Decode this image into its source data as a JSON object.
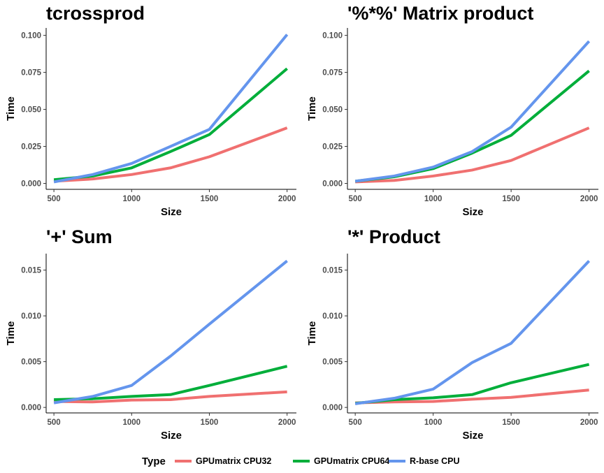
{
  "chart_data": [
    {
      "type": "line",
      "title": "tcrossprod",
      "xlabel": "Size",
      "ylabel": "Time",
      "xlim": [
        450,
        2060
      ],
      "ylim": [
        -0.004,
        0.105
      ],
      "xticks": [
        500,
        1000,
        1500,
        2000
      ],
      "xtick_labels": [
        "500",
        "1000",
        "1500",
        "2000"
      ],
      "yticks": [
        0,
        0.025,
        0.05,
        0.075,
        0.1
      ],
      "ytick_labels": [
        "0.000",
        "0.025",
        "0.050",
        "0.075",
        "0.100"
      ],
      "x": [
        500,
        750,
        1000,
        1250,
        1500,
        2000
      ],
      "series": [
        {
          "name": "GPUmatrix CPU32",
          "values": [
            0.0015,
            0.003,
            0.006,
            0.0105,
            0.018,
            0.0375
          ]
        },
        {
          "name": "GPUmatrix CPU64",
          "values": [
            0.0025,
            0.005,
            0.0105,
            0.0215,
            0.033,
            0.0775
          ]
        },
        {
          "name": "R-base CPU",
          "values": [
            0.001,
            0.006,
            0.0135,
            0.025,
            0.0365,
            0.1005
          ]
        }
      ]
    },
    {
      "type": "line",
      "title": "'%*%' Matrix product",
      "xlabel": "Size",
      "ylabel": "Time",
      "xlim": [
        450,
        2060
      ],
      "ylim": [
        -0.004,
        0.105
      ],
      "xticks": [
        500,
        1000,
        1500,
        2000
      ],
      "xtick_labels": [
        "500",
        "1000",
        "1500",
        "2000"
      ],
      "yticks": [
        0,
        0.025,
        0.05,
        0.075,
        0.1
      ],
      "ytick_labels": [
        "0.000",
        "0.025",
        "0.050",
        "0.075",
        "0.100"
      ],
      "x": [
        500,
        750,
        1000,
        1250,
        1500,
        2000
      ],
      "series": [
        {
          "name": "GPUmatrix CPU32",
          "values": [
            0.001,
            0.002,
            0.005,
            0.009,
            0.0155,
            0.0375
          ]
        },
        {
          "name": "GPUmatrix CPU64",
          "values": [
            0.0015,
            0.0045,
            0.01,
            0.0205,
            0.0325,
            0.076
          ]
        },
        {
          "name": "R-base CPU",
          "values": [
            0.0015,
            0.005,
            0.011,
            0.0215,
            0.038,
            0.096
          ]
        }
      ]
    },
    {
      "type": "line",
      "title": "'+' Sum",
      "xlabel": "Size",
      "ylabel": "Time",
      "xlim": [
        450,
        2060
      ],
      "ylim": [
        -0.0006,
        0.0168
      ],
      "xticks": [
        500,
        1000,
        1500,
        2000
      ],
      "xtick_labels": [
        "500",
        "1000",
        "1500",
        "2000"
      ],
      "yticks": [
        0,
        0.005,
        0.01,
        0.015
      ],
      "ytick_labels": [
        "0.000",
        "0.005",
        "0.010",
        "0.015"
      ],
      "x": [
        500,
        750,
        1000,
        1250,
        1500,
        2000
      ],
      "series": [
        {
          "name": "GPUmatrix CPU32",
          "values": [
            0.00065,
            0.0006,
            0.0008,
            0.00085,
            0.0012,
            0.0017
          ]
        },
        {
          "name": "GPUmatrix CPU64",
          "values": [
            0.00085,
            0.00095,
            0.0012,
            0.0014,
            0.0024,
            0.0045
          ]
        },
        {
          "name": "R-base CPU",
          "values": [
            0.0005,
            0.0012,
            0.0024,
            0.0056,
            0.0091,
            0.016
          ]
        }
      ]
    },
    {
      "type": "line",
      "title": "'*' Product",
      "xlabel": "Size",
      "ylabel": "Time",
      "xlim": [
        450,
        2060
      ],
      "ylim": [
        -0.0006,
        0.0168
      ],
      "xticks": [
        500,
        1000,
        1500,
        2000
      ],
      "xtick_labels": [
        "500",
        "1000",
        "1500",
        "2000"
      ],
      "yticks": [
        0,
        0.005,
        0.01,
        0.015
      ],
      "ytick_labels": [
        "0.000",
        "0.005",
        "0.010",
        "0.015"
      ],
      "x": [
        500,
        750,
        1000,
        1250,
        1500,
        2000
      ],
      "series": [
        {
          "name": "GPUmatrix CPU32",
          "values": [
            0.0005,
            0.0006,
            0.00065,
            0.0009,
            0.0011,
            0.0019
          ]
        },
        {
          "name": "GPUmatrix CPU64",
          "values": [
            0.00045,
            0.00085,
            0.00105,
            0.0014,
            0.0027,
            0.0047
          ]
        },
        {
          "name": "R-base CPU",
          "values": [
            0.0004,
            0.001,
            0.002,
            0.0049,
            0.007,
            0.016
          ]
        }
      ]
    }
  ],
  "legend": {
    "title": "Type",
    "position": "bottom",
    "entries": [
      {
        "name": "GPUmatrix CPU32",
        "color": "#F07070"
      },
      {
        "name": "GPUmatrix CPU64",
        "color": "#00AE3A"
      },
      {
        "name": "R-base CPU",
        "color": "#6495ED"
      }
    ]
  }
}
